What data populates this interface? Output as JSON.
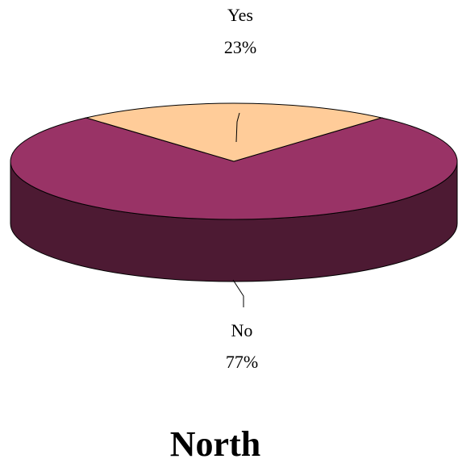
{
  "chart_data": {
    "type": "pie",
    "style": "3d",
    "title": "North",
    "slices": [
      {
        "label": "Yes",
        "value": 23,
        "pct_label": "23%",
        "color": "#FFCC99",
        "side_color": "#B38F6B"
      },
      {
        "label": "No",
        "value": 77,
        "pct_label": "77%",
        "color": "#993366",
        "side_color": "#4D1A33"
      }
    ],
    "colors": {
      "outline": "#000000",
      "background": "#FFFFFF"
    }
  }
}
